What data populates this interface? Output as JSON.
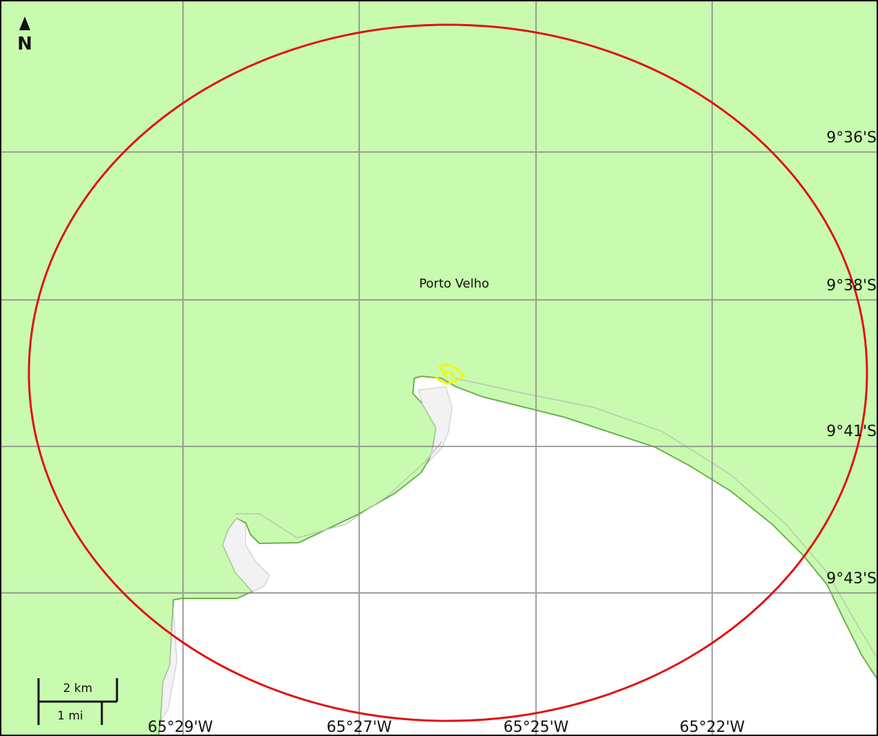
{
  "map": {
    "place_label": "Porto Velho",
    "north_label": "N",
    "latitude_labels": [
      "9°36'S",
      "9°38'S",
      "9°41'S",
      "9°43'S"
    ],
    "longitude_labels": [
      "65°29'W",
      "65°27'W",
      "65°25'W",
      "65°22'W"
    ],
    "scale_bar": {
      "metric": "2 km",
      "imperial": "1 mi"
    },
    "colors": {
      "land": "#c8fbb0",
      "water": "#ffffff",
      "shore": "#6ab04c",
      "sandbar": "#f2f2f2",
      "grid": "#808080",
      "range_circle": "#e01010",
      "marker": "#f5f500"
    },
    "icons": [
      "north-arrow-icon",
      "location-marker-icon"
    ]
  }
}
